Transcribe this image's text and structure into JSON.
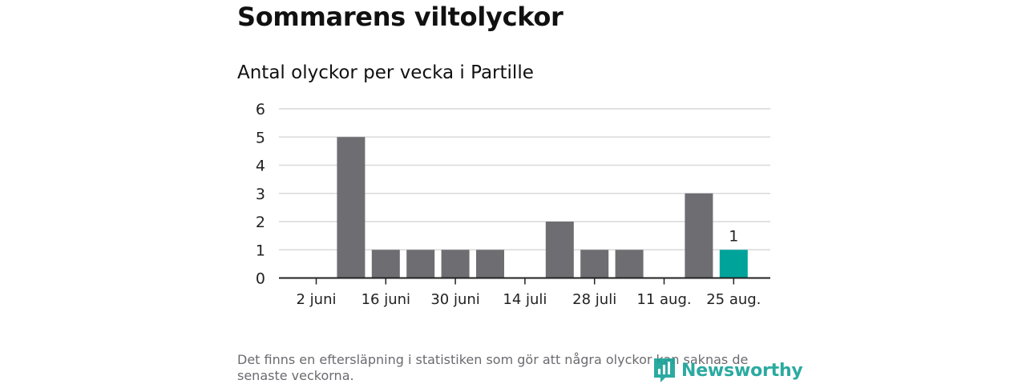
{
  "title": "Sommarens viltolyckor",
  "subtitle": "Antal olyckor per vecka i Partille",
  "note": "Det finns en eftersläpning i statistiken som gör att några olyckor kan saknas de senaste veckorna.",
  "brand": {
    "name": "Newsworthy"
  },
  "colors": {
    "bar": "#6e6d72",
    "highlight": "#00a39a",
    "grid": "#d9d9d9",
    "axis": "#222222",
    "brand": "#1aa399"
  },
  "chart_data": {
    "type": "bar",
    "title": "Antal olyckor per vecka i Partille",
    "xlabel": "",
    "ylabel": "",
    "ylim": [
      0,
      6
    ],
    "yticks": [
      "0",
      "1",
      "2",
      "3",
      "4",
      "5",
      "6"
    ],
    "grid": true,
    "x_tick_labels": [
      "2 juni",
      "16 juni",
      "30 juni",
      "14 juli",
      "28 juli",
      "11 aug.",
      "25 aug."
    ],
    "values": [
      0,
      5,
      1,
      1,
      1,
      1,
      0,
      2,
      1,
      1,
      0,
      3,
      1
    ],
    "highlight_index": 12,
    "data_labels": [
      {
        "index": 12,
        "text": "1"
      }
    ]
  }
}
